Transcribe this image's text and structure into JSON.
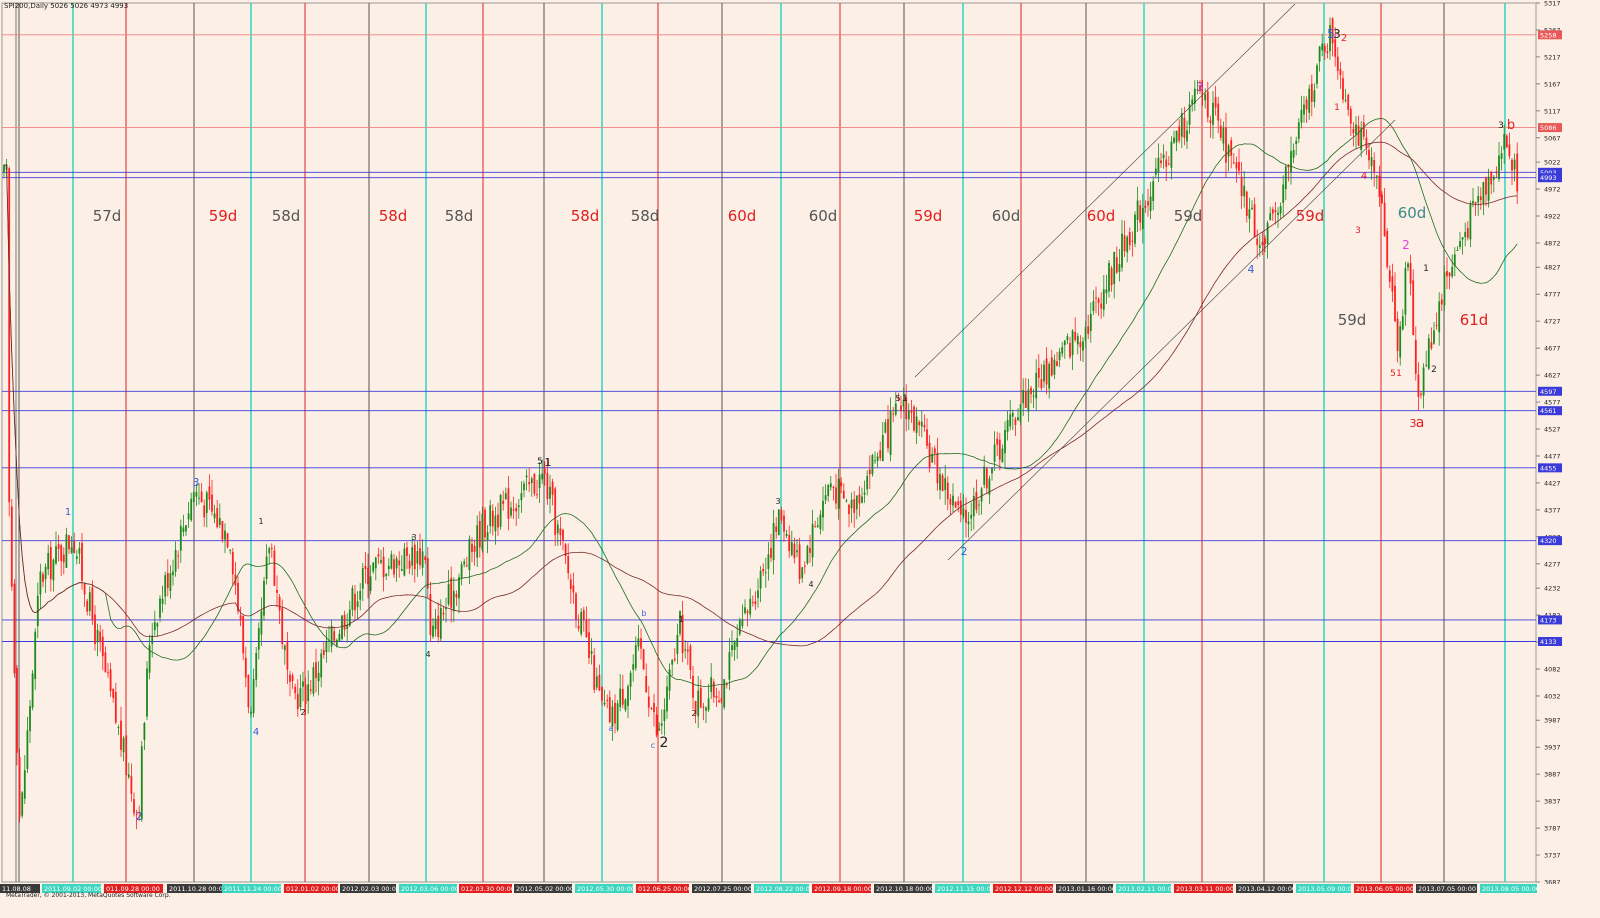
{
  "header": {
    "symbol_label": "SPI200,Daily  5026 5026 4973 4993"
  },
  "footer": {
    "copyright": "MetaTrader, © 2001-2013, MetaQuotes Software Corp."
  },
  "colors": {
    "background": "#fcf0e6",
    "bull": "#1a8a1a",
    "bear": "#ff2020",
    "hline_blue": "#3b3bd9",
    "hline_red": "#f08080",
    "vline_black": "#555555",
    "vline_red": "#e02020",
    "vline_cyan": "#3cd6c0",
    "ma_fast": "#1f6b1f",
    "ma_slow": "#7a2a2a"
  },
  "chart_data": {
    "type": "candlestick",
    "ylim": [
      3687,
      5317
    ],
    "y_ticks": [
      5317,
      5267,
      5217,
      5167,
      5117,
      5067,
      5022,
      4972,
      4922,
      4872,
      4827,
      4777,
      4727,
      4677,
      4627,
      4577,
      4527,
      4477,
      4427,
      4377,
      4327,
      4277,
      4232,
      4182,
      4132,
      4082,
      4032,
      3987,
      3937,
      3887,
      3837,
      3787,
      3737,
      3687
    ],
    "price_markers": [
      {
        "label": "5258",
        "value": 5258,
        "color": "#e85a5a"
      },
      {
        "label": "5086",
        "value": 5086,
        "color": "#e85a5a"
      },
      {
        "label": "5003",
        "value": 5003,
        "color": "#3b3bd9"
      },
      {
        "label": "4993",
        "value": 4993,
        "color": "#3b3bd9"
      },
      {
        "label": "4597",
        "value": 4597,
        "color": "#3b3bd9"
      },
      {
        "label": "4561",
        "value": 4561,
        "color": "#3b3bd9"
      },
      {
        "label": "4455",
        "value": 4455,
        "color": "#3b3bd9"
      },
      {
        "label": "4320",
        "value": 4320,
        "color": "#3b3bd9"
      },
      {
        "label": "4173",
        "value": 4173,
        "color": "#3b3bd9"
      },
      {
        "label": "4133",
        "value": 4133,
        "color": "#3b3bd9"
      }
    ],
    "date_labels": [
      {
        "label": "11.08.08",
        "color": "black"
      },
      {
        "label": "2011.09.02 00:00",
        "color": "cyan"
      },
      {
        "label": "011.09.28 00:00",
        "color": "red"
      },
      {
        "label": "2011.10.28 00:00",
        "color": "black"
      },
      {
        "label": "2011.11.24 00:00",
        "color": "cyan"
      },
      {
        "label": "012.01.02 00:00",
        "color": "red"
      },
      {
        "label": "2012.02.03 00:00",
        "color": "black"
      },
      {
        "label": "2012.03.06 00:00",
        "color": "cyan"
      },
      {
        "label": "012.03.30 00:00",
        "color": "red"
      },
      {
        "label": "2012.05.02 00:00",
        "color": "black"
      },
      {
        "label": "2012.05.30 00:00",
        "color": "cyan"
      },
      {
        "label": "012.06.25 00:00",
        "color": "red"
      },
      {
        "label": "2012.07.25 00:00",
        "color": "black"
      },
      {
        "label": "2012.08.22 00:00",
        "color": "cyan"
      },
      {
        "label": "2012.09.18 00:00",
        "color": "red"
      },
      {
        "label": "2012.10.18 00:00",
        "color": "black"
      },
      {
        "label": "2012.11.15 00:00",
        "color": "cyan"
      },
      {
        "label": "2012.12.12 00:00",
        "color": "red"
      },
      {
        "label": "2013.01.16 00:00",
        "color": "black"
      },
      {
        "label": "2013.02.11 00:00",
        "color": "cyan"
      },
      {
        "label": "2013.03.11 00:00",
        "color": "red"
      },
      {
        "label": "2013.04.12 00:00",
        "color": "black"
      },
      {
        "label": "2013.05.09 00:00",
        "color": "cyan"
      },
      {
        "label": "2013.06.05 00:00",
        "color": "red"
      },
      {
        "label": "2013.07.05 00:00",
        "color": "black"
      },
      {
        "label": "2013.08.05 00:00",
        "color": "cyan"
      }
    ],
    "cycle_labels": [
      {
        "text": "57d",
        "color": "#555555"
      },
      {
        "text": "59d",
        "color": "#e02020"
      },
      {
        "text": "58d",
        "color": "#555555"
      },
      {
        "text": "58d",
        "color": "#e02020"
      },
      {
        "text": "58d",
        "color": "#555555"
      },
      {
        "text": "58d",
        "color": "#e02020"
      },
      {
        "text": "58d",
        "color": "#555555"
      },
      {
        "text": "60d",
        "color": "#e02020"
      },
      {
        "text": "60d",
        "color": "#555555"
      },
      {
        "text": "59d",
        "color": "#e02020"
      },
      {
        "text": "60d",
        "color": "#555555"
      },
      {
        "text": "60d",
        "color": "#e02020"
      },
      {
        "text": "59d",
        "color": "#555555"
      },
      {
        "text": "59d",
        "color": "#e02020"
      },
      {
        "text": "60d",
        "color": "#3a8a8a"
      },
      {
        "text": "59d",
        "color": "#555555"
      },
      {
        "text": "61d",
        "color": "#e02020"
      }
    ],
    "wave_labels": [
      {
        "text": "1",
        "color": "#3b5bd9"
      },
      {
        "text": "2",
        "color": "#3b5bd9"
      },
      {
        "text": "3",
        "color": "#3b5bd9"
      },
      {
        "text": "4",
        "color": "#3b5bd9"
      },
      {
        "text": "1",
        "color": "#222222"
      },
      {
        "text": "2",
        "color": "#222222"
      },
      {
        "text": "3",
        "color": "#222222"
      },
      {
        "text": "4",
        "color": "#222222"
      },
      {
        "text": "5",
        "color": "#222222"
      },
      {
        "text": "1",
        "color": "#222222"
      },
      {
        "text": "a",
        "color": "#3b5bd9"
      },
      {
        "text": "b",
        "color": "#3b5bd9"
      },
      {
        "text": "c",
        "color": "#3b5bd9"
      },
      {
        "text": "2",
        "color": "#222222"
      },
      {
        "text": "1",
        "color": "#222222"
      },
      {
        "text": "2",
        "color": "#222222"
      },
      {
        "text": "3",
        "color": "#222222"
      },
      {
        "text": "4",
        "color": "#222222"
      },
      {
        "text": "5",
        "color": "#222222"
      },
      {
        "text": "1",
        "color": "#222222"
      },
      {
        "text": "2",
        "color": "#3b5bd9"
      },
      {
        "text": "3",
        "color": "#a040c0"
      },
      {
        "text": "4",
        "color": "#3b5bd9"
      },
      {
        "text": "5",
        "color": "#3b5bd9"
      },
      {
        "text": "3",
        "color": "#222222"
      },
      {
        "text": "2",
        "color": "#e02020"
      },
      {
        "text": "1",
        "color": "#e02020"
      },
      {
        "text": "4",
        "color": "#e02020"
      },
      {
        "text": "3",
        "color": "#e02020"
      },
      {
        "text": "2",
        "color": "#e040e0"
      },
      {
        "text": "1",
        "color": "#222222"
      },
      {
        "text": "2",
        "color": "#222222"
      },
      {
        "text": "5",
        "color": "#e02020"
      },
      {
        "text": "1",
        "color": "#e02020"
      },
      {
        "text": "3",
        "color": "#e02020"
      },
      {
        "text": "a",
        "color": "#e02020"
      },
      {
        "text": "3",
        "color": "#222222"
      },
      {
        "text": "b",
        "color": "#e02020"
      }
    ],
    "price_path": [
      {
        "date": "2011.08.08",
        "price": 4450
      },
      {
        "date": "2011.08.11",
        "price": 3790
      },
      {
        "date": "2011.08.18",
        "price": 4250
      },
      {
        "date": "2011.09.02",
        "price": 4330
      },
      {
        "date": "2011.09.28",
        "price": 3810
      },
      {
        "date": "2011.10.05",
        "price": 4150
      },
      {
        "date": "2011.10.28",
        "price": 4415
      },
      {
        "date": "2011.11.10",
        "price": 4330
      },
      {
        "date": "2011.11.24",
        "price": 3990
      },
      {
        "date": "2011.12.05",
        "price": 4330
      },
      {
        "date": "2011.12.20",
        "price": 4030
      },
      {
        "date": "2012.01.02",
        "price": 4040
      },
      {
        "date": "2012.02.03",
        "price": 4270
      },
      {
        "date": "2012.03.06",
        "price": 4300
      },
      {
        "date": "2012.03.08",
        "price": 4135
      },
      {
        "date": "2012.04.10",
        "price": 4350
      },
      {
        "date": "2012.05.02",
        "price": 4440
      },
      {
        "date": "2012.05.30",
        "price": 4010
      },
      {
        "date": "2012.06.05",
        "price": 3990
      },
      {
        "date": "2012.06.15",
        "price": 4120
      },
      {
        "date": "2012.06.25",
        "price": 3950
      },
      {
        "date": "2012.07.05",
        "price": 4160
      },
      {
        "date": "2012.07.15",
        "price": 4020
      },
      {
        "date": "2012.07.25",
        "price": 4050
      },
      {
        "date": "2012.08.22",
        "price": 4370
      },
      {
        "date": "2012.09.10",
        "price": 4270
      },
      {
        "date": "2012.09.25",
        "price": 4430
      },
      {
        "date": "2012.10.05",
        "price": 4380
      },
      {
        "date": "2012.10.18",
        "price": 4580
      },
      {
        "date": "2012.11.15",
        "price": 4350
      },
      {
        "date": "2012.12.12",
        "price": 4580
      },
      {
        "date": "2013.01.16",
        "price": 4720
      },
      {
        "date": "2013.02.11",
        "price": 4950
      },
      {
        "date": "2013.03.11",
        "price": 5160
      },
      {
        "date": "2013.04.12",
        "price": 4860
      },
      {
        "date": "2013.05.09",
        "price": 5240
      },
      {
        "date": "2013.05.15",
        "price": 5260
      },
      {
        "date": "2013.05.25",
        "price": 5150
      },
      {
        "date": "2013.06.05",
        "price": 4950
      },
      {
        "date": "2013.06.12",
        "price": 4690
      },
      {
        "date": "2013.06.20",
        "price": 4840
      },
      {
        "date": "2013.06.26",
        "price": 4590
      },
      {
        "date": "2013.07.05",
        "price": 4800
      },
      {
        "date": "2013.07.20",
        "price": 4960
      },
      {
        "date": "2013.08.05",
        "price": 5060
      },
      {
        "date": "2013.08.12",
        "price": 4993
      }
    ]
  }
}
